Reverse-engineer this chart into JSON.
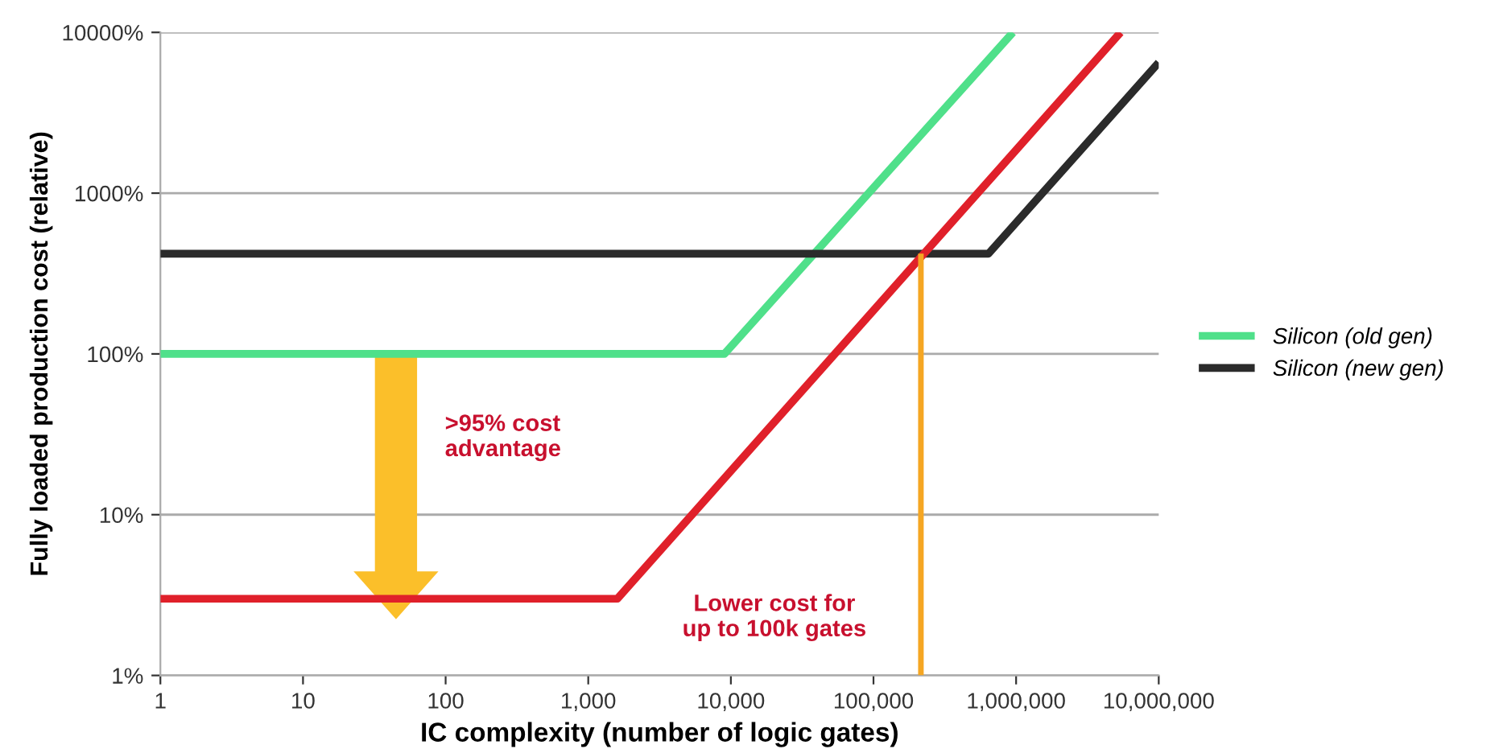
{
  "chart_data": {
    "type": "line",
    "xlabel": "IC complexity (number of logic gates)",
    "ylabel": "Fully loaded production cost (relative)",
    "log": "xy",
    "grid": "y",
    "legend": "right",
    "line_style": "solid",
    "marker": "none",
    "xlim": [
      1,
      10000000
    ],
    "ylim": [
      1,
      10000
    ],
    "xticks": [
      1,
      10,
      100,
      {
        "value": 1000,
        "label": "1,000"
      },
      {
        "value": 10000,
        "label": "10,000"
      },
      {
        "value": 100000,
        "label": "100,000"
      },
      {
        "value": 1000000,
        "label": "1,000,000"
      },
      {
        "value": 10000000,
        "label": "10,000,000"
      }
    ],
    "yticks": [
      {
        "value": 1,
        "label": "1%"
      },
      {
        "value": 10,
        "label": "10%"
      },
      {
        "value": 100,
        "label": "100%"
      },
      {
        "value": 1000,
        "label": "1000%"
      },
      {
        "value": 10000,
        "label": "10000%"
      }
    ],
    "series": [
      {
        "name": "Silicon (old gen)",
        "color": "#4fe08a",
        "x": [
          1,
          9000,
          950000
        ],
        "values": [
          100,
          100,
          10000
        ]
      },
      {
        "name": "Silicon (new gen)",
        "color": "#2b2b2b",
        "x": [
          1,
          640000,
          10000000
        ],
        "values": [
          420,
          420,
          6500
        ]
      },
      {
        "color": "#e0202a",
        "x": [
          1,
          1600,
          5400000
        ],
        "values": [
          3,
          3,
          10000
        ]
      },
      {
        "color": "#f5a623",
        "x": [
          215000,
          215000
        ],
        "values": [
          1,
          420
        ]
      }
    ],
    "annotations": [
      ">95% cost\nadvantage",
      "Lower cost for\nup to 100k gates"
    ]
  }
}
